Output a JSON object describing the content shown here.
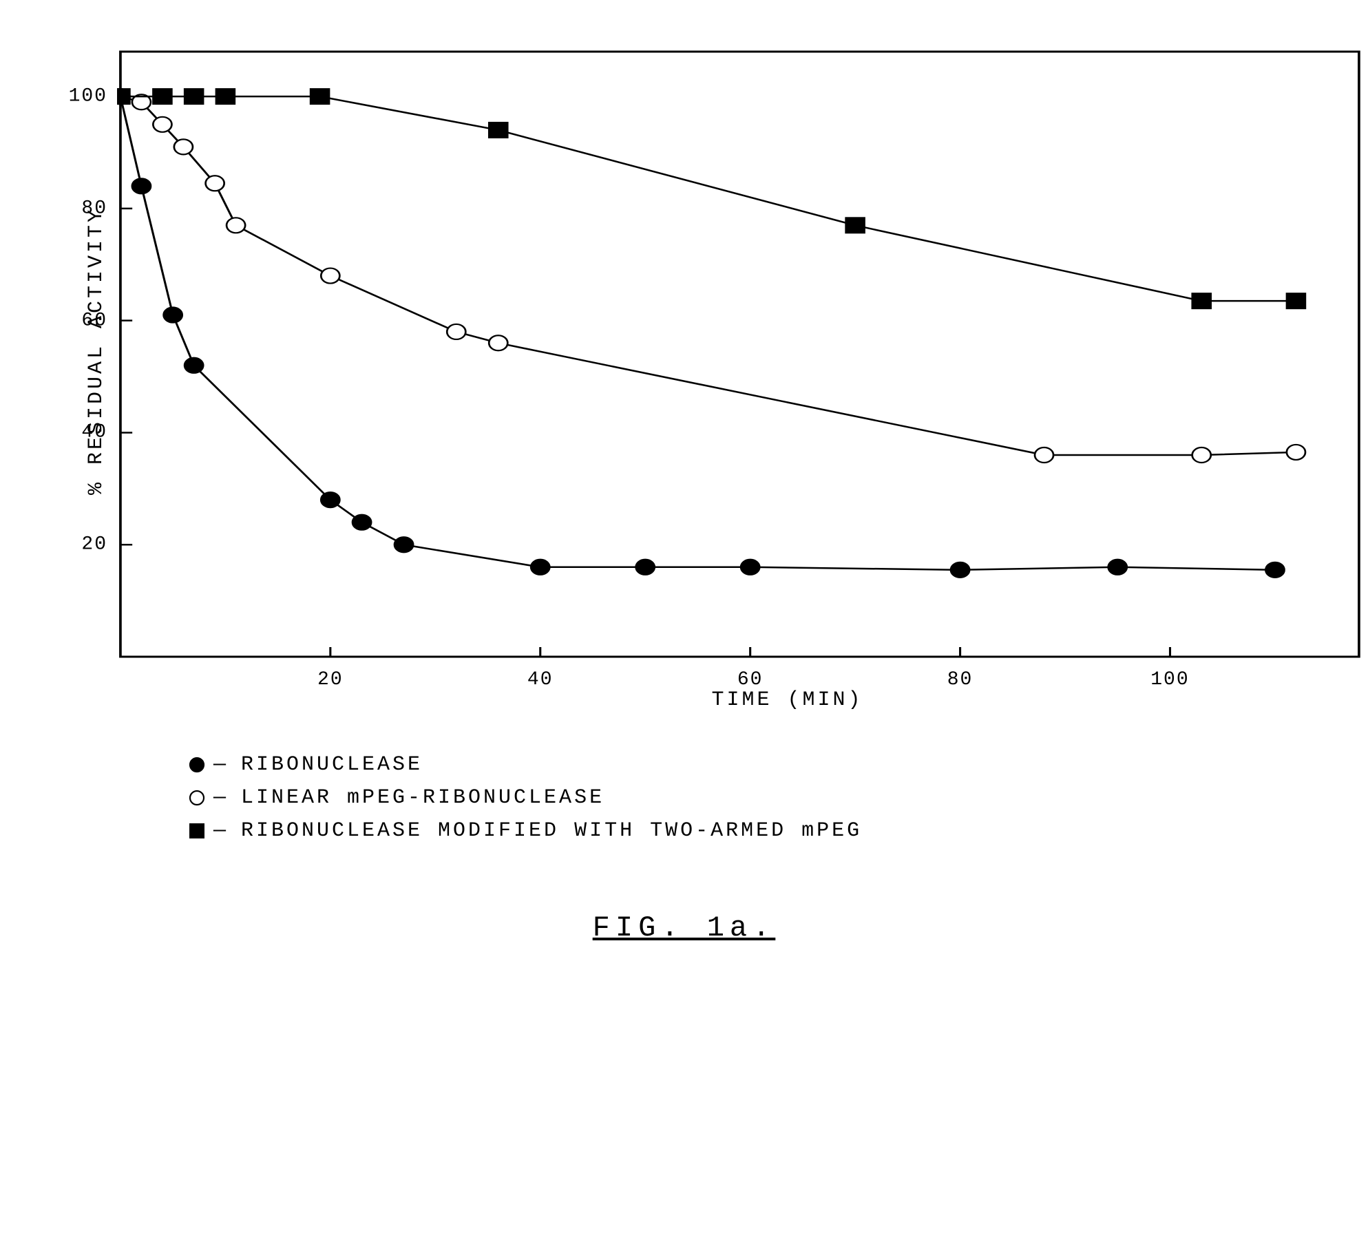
{
  "chart": {
    "type": "line",
    "xlabel": "TIME (MIN)",
    "ylabel": "% RESIDUAL ACTIVITY",
    "xlim": [
      0,
      118
    ],
    "ylim": [
      0,
      108
    ],
    "xticks": [
      20,
      40,
      60,
      80,
      100
    ],
    "yticks": [
      20,
      40,
      60,
      80,
      100
    ],
    "line_color": "#000000",
    "line_width": 2.5,
    "marker_size": 11,
    "series": [
      {
        "id": "ribonuclease",
        "label": "RIBONUCLEASE",
        "marker": "filled-circle",
        "fill": "#000000",
        "stroke": "#000000",
        "data": [
          [
            0,
            100
          ],
          [
            2,
            84
          ],
          [
            5,
            61
          ],
          [
            7,
            52
          ],
          [
            20,
            28
          ],
          [
            23,
            24
          ],
          [
            27,
            20
          ],
          [
            40,
            16
          ],
          [
            50,
            16
          ],
          [
            60,
            16
          ],
          [
            80,
            15.5
          ],
          [
            95,
            16
          ],
          [
            110,
            15.5
          ]
        ]
      },
      {
        "id": "linear-mpeg",
        "label": "LINEAR mPEG-RIBONUCLEASE",
        "marker": "open-circle",
        "fill": "#ffffff",
        "stroke": "#000000",
        "data": [
          [
            0,
            100
          ],
          [
            2,
            99
          ],
          [
            4,
            95
          ],
          [
            6,
            91
          ],
          [
            9,
            84.5
          ],
          [
            11,
            77
          ],
          [
            20,
            68
          ],
          [
            32,
            58
          ],
          [
            36,
            56
          ],
          [
            88,
            36
          ],
          [
            103,
            36
          ],
          [
            112,
            36.5
          ]
        ]
      },
      {
        "id": "two-armed-mpeg",
        "label": "RIBONUCLEASE MODIFIED WITH TWO-ARMED mPEG",
        "marker": "filled-square",
        "fill": "#000000",
        "stroke": "#000000",
        "data": [
          [
            0,
            100
          ],
          [
            4,
            100
          ],
          [
            7,
            100
          ],
          [
            10,
            100
          ],
          [
            19,
            100
          ],
          [
            36,
            94
          ],
          [
            70,
            77
          ],
          [
            103,
            63.5
          ],
          [
            112,
            63.5
          ]
        ]
      }
    ]
  },
  "legend_title": "",
  "caption": "FIG. 1a.",
  "colors": {
    "background": "#ffffff",
    "ink": "#000000"
  },
  "fonts": {
    "label_size": 30,
    "tick_size": 28,
    "caption_size": 42
  }
}
